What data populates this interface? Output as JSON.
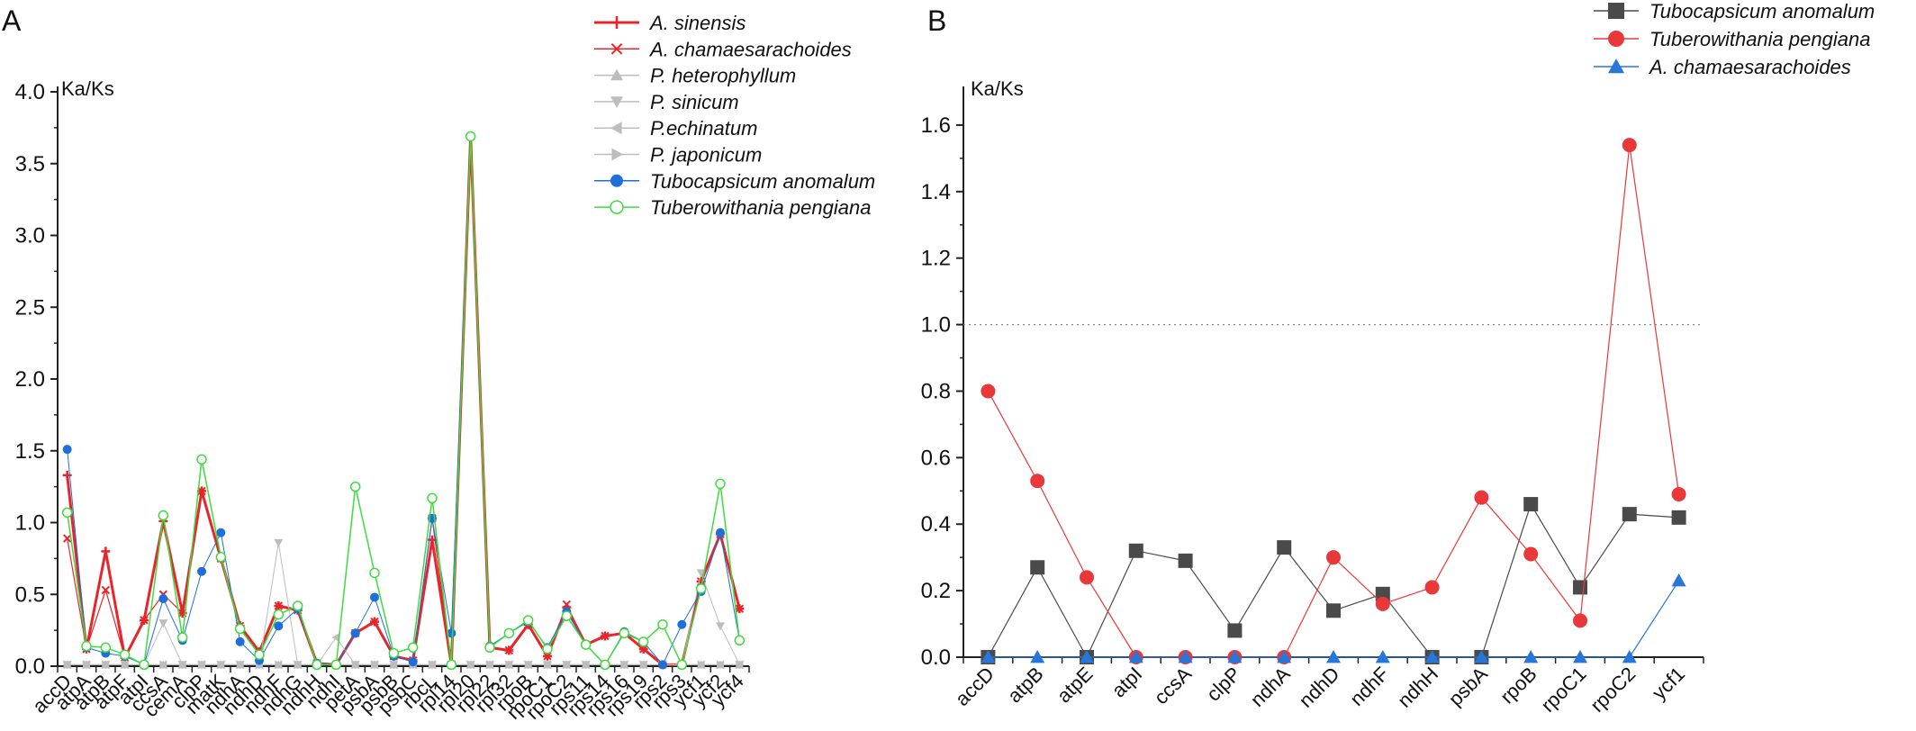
{
  "figure": {
    "panel_a_label": "A",
    "panel_b_label": "B"
  },
  "colors": {
    "red": "#e8252a",
    "blue": "#1e6fd9",
    "green": "#3ddc3d",
    "gray_light": "#bdbdbd",
    "gray_dark": "#4a4a4a",
    "red_b": "#e9383a",
    "blue_b": "#2876d8"
  },
  "chart_data": [
    {
      "panel": "A",
      "type": "line",
      "ylabel": "Ka/Ks",
      "xlabel": "",
      "ylim": [
        0,
        4.0
      ],
      "yticks": [
        "0.0",
        "0.5",
        "1.0",
        "1.5",
        "2.0",
        "2.5",
        "3.0",
        "3.5",
        "4.0"
      ],
      "grid": false,
      "legend": "top-right",
      "categories": [
        "accD",
        "atpA",
        "atpB",
        "atpF",
        "atpI",
        "ccsA",
        "cemA",
        "clpP",
        "matK",
        "ndhA",
        "ndhD",
        "ndhF",
        "ndhG",
        "ndhH",
        "ndhI",
        "petA",
        "psbA",
        "psbB",
        "psbC",
        "rbcL",
        "rpl14",
        "rpl20",
        "rpl22",
        "rpl32",
        "rpoB",
        "rpoC1",
        "rpoC2",
        "rps11",
        "rps14",
        "rps16",
        "rps19",
        "rps2",
        "rps3",
        "ycf1",
        "ycf2",
        "ycf4"
      ],
      "series": [
        {
          "name": "A. sinensis",
          "color": "#e8252a",
          "marker": "plus",
          "width": 3,
          "values": [
            1.33,
            0.12,
            0.8,
            0.06,
            0.32,
            1.01,
            0.37,
            1.22,
            0.75,
            0.28,
            0.1,
            0.42,
            0.39,
            0.02,
            0.01,
            0.23,
            0.31,
            0.07,
            0.04,
            0.88,
            0.01,
            3.69,
            0.13,
            0.11,
            0.29,
            0.07,
            0.41,
            0.15,
            0.21,
            0.23,
            0.12,
            0.01,
            0.01,
            0.59,
            0.92,
            0.4
          ]
        },
        {
          "name": "A. chamaesarachoides",
          "color": "#e8252a",
          "marker": "x",
          "width": 1.2,
          "values": [
            0.89,
            0.12,
            0.53,
            0.06,
            0.32,
            0.5,
            0.37,
            1.22,
            0.75,
            0.28,
            0.1,
            0.42,
            0.39,
            0.02,
            0.01,
            0.23,
            0.31,
            0.07,
            0.04,
            1.03,
            0.01,
            3.69,
            0.13,
            0.11,
            0.29,
            0.07,
            0.43,
            0.15,
            0.21,
            0.23,
            0.12,
            0.01,
            0.01,
            0.59,
            0.92,
            0.4
          ]
        },
        {
          "name": "P. heterophyllum",
          "color": "#bdbdbd",
          "marker": "tri-up",
          "width": 1,
          "values": [
            0.01,
            0.01,
            0.01,
            0.01,
            0.01,
            0.01,
            0.01,
            0.01,
            0.01,
            0.01,
            0.01,
            0.01,
            0.01,
            0.01,
            0.01,
            0.01,
            0.01,
            0.01,
            0.01,
            0.01,
            0.01,
            0.01,
            0.01,
            0.01,
            0.01,
            0.01,
            0.01,
            0.01,
            0.01,
            0.01,
            0.01,
            0.01,
            0.01,
            0.01,
            0.01,
            0.01
          ]
        },
        {
          "name": "P. sinicum",
          "color": "#bdbdbd",
          "marker": "tri-down",
          "width": 1,
          "values": [
            0.01,
            0.01,
            0.01,
            0.01,
            0.01,
            0.3,
            0.01,
            0.01,
            0.01,
            0.01,
            0.01,
            0.86,
            0.01,
            0.01,
            0.01,
            0.01,
            0.01,
            0.01,
            0.01,
            0.01,
            0.01,
            0.01,
            0.01,
            0.01,
            0.01,
            0.01,
            0.01,
            0.01,
            0.01,
            0.01,
            0.01,
            0.01,
            0.01,
            0.65,
            0.28,
            0.01
          ]
        },
        {
          "name": "P.echinatum",
          "color": "#bdbdbd",
          "marker": "tri-left",
          "width": 1,
          "values": [
            0.01,
            0.01,
            0.01,
            0.01,
            0.01,
            0.01,
            0.01,
            0.01,
            0.01,
            0.01,
            0.01,
            0.01,
            0.01,
            0.01,
            0.2,
            0.01,
            0.01,
            0.01,
            0.01,
            0.01,
            0.01,
            0.01,
            0.01,
            0.01,
            0.01,
            0.01,
            0.01,
            0.01,
            0.01,
            0.01,
            0.01,
            0.01,
            0.01,
            0.01,
            0.01,
            0.01
          ]
        },
        {
          "name": "P. japonicum",
          "color": "#bdbdbd",
          "marker": "tri-right",
          "width": 1,
          "values": [
            0.01,
            0.01,
            0.01,
            0.01,
            0.01,
            0.01,
            0.01,
            0.01,
            0.01,
            0.01,
            0.01,
            0.01,
            0.01,
            0.01,
            0.01,
            0.01,
            0.01,
            0.01,
            0.01,
            0.01,
            0.01,
            0.01,
            0.01,
            0.01,
            0.01,
            0.01,
            0.01,
            0.01,
            0.01,
            0.01,
            0.01,
            0.01,
            0.01,
            0.01,
            0.01,
            0.01
          ]
        },
        {
          "name": "Tubocapsicum anomalum",
          "color": "#1e6fd9",
          "marker": "dot",
          "width": 1,
          "values": [
            1.51,
            0.13,
            0.09,
            0.07,
            0.01,
            0.47,
            0.18,
            0.66,
            0.93,
            0.17,
            0.04,
            0.28,
            0.4,
            0.02,
            0.01,
            0.23,
            0.48,
            0.07,
            0.03,
            1.03,
            0.23,
            3.69,
            0.14,
            0.23,
            0.31,
            0.13,
            0.38,
            0.15,
            0.01,
            0.24,
            0.17,
            0.01,
            0.29,
            0.52,
            0.93,
            0.18
          ]
        },
        {
          "name": "Tuberowithania pengiana",
          "color": "#3ddc3d",
          "marker": "ring",
          "width": 1.5,
          "values": [
            1.07,
            0.14,
            0.13,
            0.08,
            0.01,
            1.05,
            0.2,
            1.44,
            0.76,
            0.26,
            0.08,
            0.36,
            0.42,
            0.01,
            0.01,
            1.25,
            0.65,
            0.09,
            0.13,
            1.17,
            0.01,
            3.69,
            0.13,
            0.23,
            0.32,
            0.12,
            0.35,
            0.15,
            0.01,
            0.23,
            0.17,
            0.29,
            0.01,
            0.54,
            1.27,
            0.18
          ]
        }
      ]
    },
    {
      "panel": "B",
      "type": "line",
      "ylabel": "Ka/Ks",
      "xlabel": "",
      "ylim": [
        0,
        1.7
      ],
      "yticks": [
        "0.0",
        "0.2",
        "0.4",
        "0.6",
        "0.8",
        "1.0",
        "1.2",
        "1.4",
        "1.6"
      ],
      "reference_line": 1.0,
      "grid": false,
      "legend": "top-right",
      "categories": [
        "accD",
        "atpB",
        "atpE",
        "atpI",
        "ccsA",
        "clpP",
        "ndhA",
        "ndhD",
        "ndhF",
        "ndhH",
        "psbA",
        "rpoB",
        "rpoC1",
        "rpoC2",
        "ycf1"
      ],
      "series": [
        {
          "name": "Tubocapsicum anomalum",
          "color": "#4a4a4a",
          "marker": "square",
          "values": [
            0.0,
            0.27,
            0.0,
            0.32,
            0.29,
            0.08,
            0.33,
            0.14,
            0.19,
            0.0,
            0.0,
            0.46,
            0.21,
            0.43,
            0.42
          ]
        },
        {
          "name": "Tuberowithania pengiana",
          "color": "#e9383a",
          "marker": "circle",
          "values": [
            0.8,
            0.53,
            0.24,
            0.0,
            0.0,
            0.0,
            0.0,
            0.3,
            0.16,
            0.21,
            0.48,
            0.31,
            0.11,
            1.54,
            0.49
          ]
        },
        {
          "name": "A. chamaesarachoides",
          "color": "#2876d8",
          "marker": "triangle",
          "values": [
            0.0,
            0.0,
            0.0,
            0.0,
            0.0,
            0.0,
            0.0,
            0.0,
            0.0,
            0.0,
            0.0,
            0.0,
            0.0,
            0.0,
            0.23
          ]
        }
      ]
    }
  ]
}
